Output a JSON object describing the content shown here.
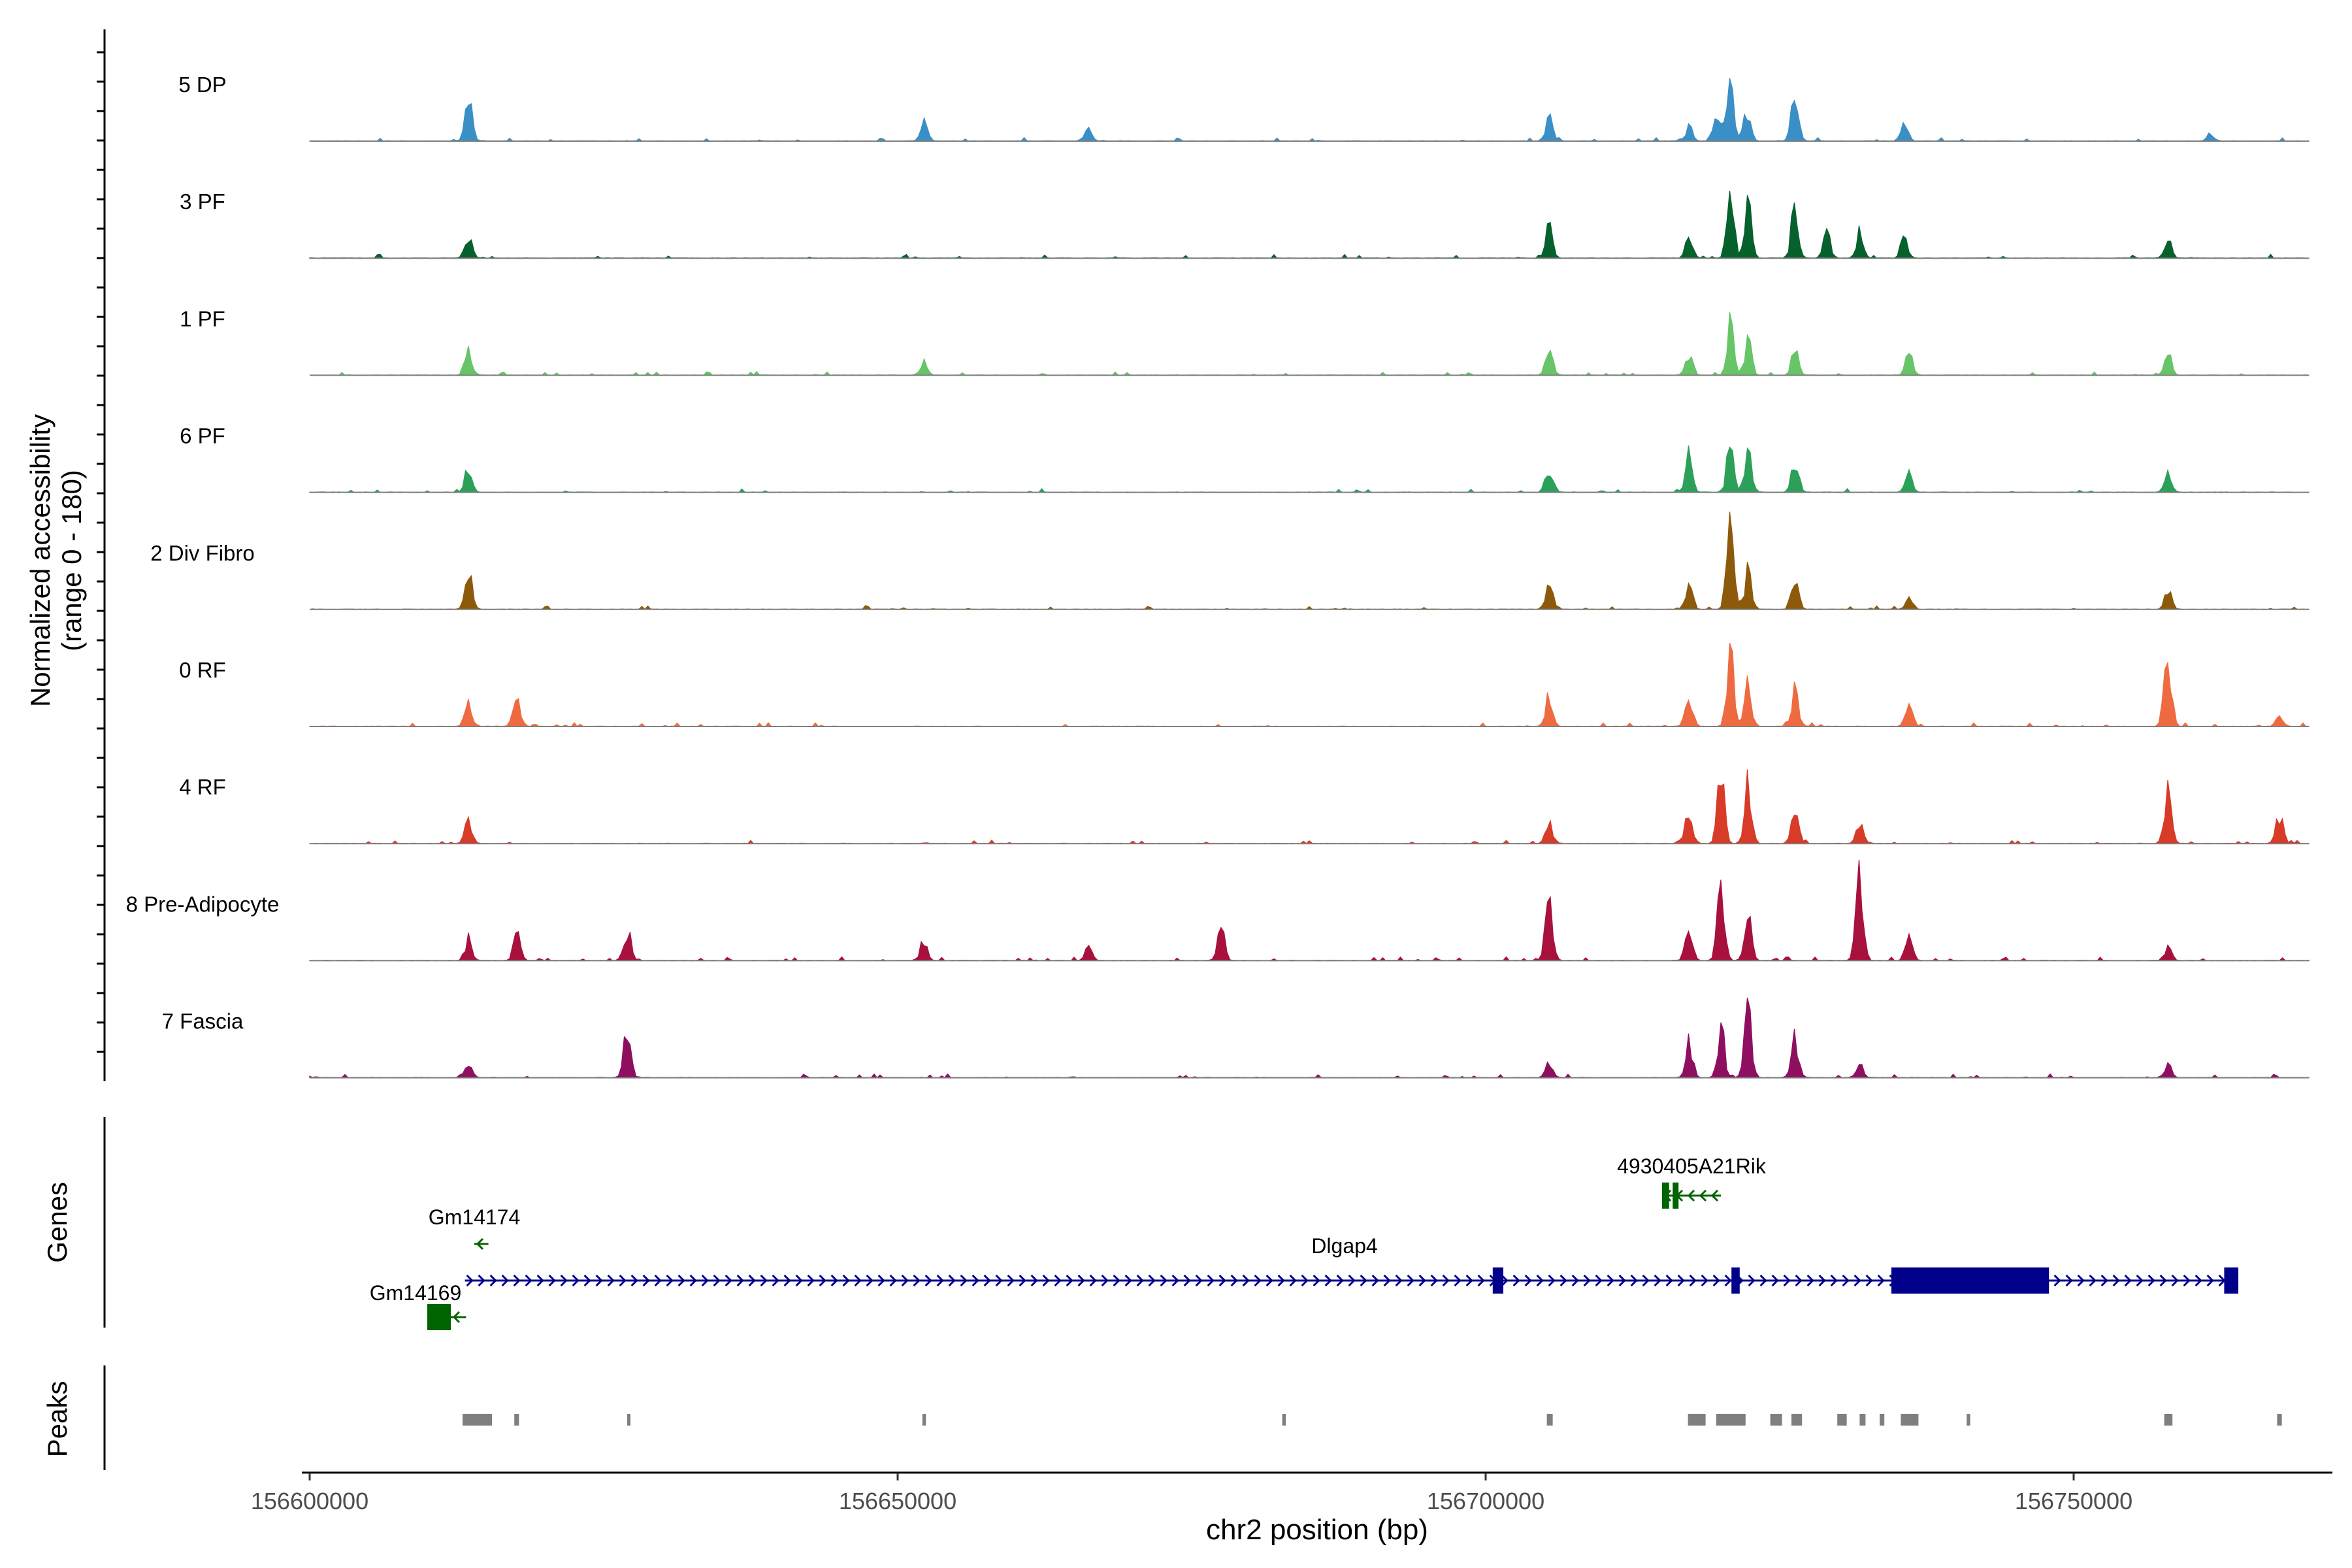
{
  "chart_data": {
    "type": "area",
    "title": "",
    "xlabel": "chr2 position (bp)",
    "xlim": [
      156600000,
      156780000
    ],
    "x_ticks": [
      156600000,
      156650000,
      156700000,
      156750000
    ],
    "x_tick_labels": [
      "156600000",
      "156650000",
      "156700000",
      "156750000"
    ],
    "coverage": {
      "ylabel_line1": "Normalized accessibility",
      "ylabel_line2": "(range 0 - 180)",
      "ylim": [
        0,
        180
      ],
      "range_bp": [
        156600000,
        156770000
      ],
      "tracks": [
        {
          "name": "5 DP",
          "color": "#3A8FC7",
          "peaks": [
            [
              156613500,
              0.55
            ],
            [
              156652200,
              0.28
            ],
            [
              156666200,
              0.22
            ],
            [
              156705400,
              0.33
            ],
            [
              156717300,
              0.22
            ],
            [
              156719600,
              0.45
            ],
            [
              156720800,
              1.0
            ],
            [
              156722200,
              0.4
            ],
            [
              156726300,
              0.88
            ],
            [
              156735600,
              0.22
            ],
            [
              156761600,
              0.1
            ]
          ]
        },
        {
          "name": "3 PF",
          "color": "#07612C",
          "peaks": [
            [
              156613500,
              0.35
            ],
            [
              156705400,
              0.5
            ],
            [
              156717300,
              0.3
            ],
            [
              156720800,
              0.95
            ],
            [
              156722300,
              0.7
            ],
            [
              156726300,
              0.8
            ],
            [
              156729000,
              0.35
            ],
            [
              156731800,
              0.35
            ],
            [
              156735600,
              0.3
            ],
            [
              156758000,
              0.25
            ]
          ]
        },
        {
          "name": "1 PF",
          "color": "#67C467",
          "peaks": [
            [
              156613500,
              0.4
            ],
            [
              156652200,
              0.18
            ],
            [
              156705400,
              0.35
            ],
            [
              156717300,
              0.3
            ],
            [
              156720800,
              0.7
            ],
            [
              156722300,
              0.5
            ],
            [
              156726300,
              0.35
            ],
            [
              156736000,
              0.3
            ],
            [
              156758000,
              0.3
            ]
          ]
        },
        {
          "name": "6 PF",
          "color": "#2CA059",
          "peaks": [
            [
              156613500,
              0.35
            ],
            [
              156705400,
              0.35
            ],
            [
              156717300,
              0.55
            ],
            [
              156720800,
              0.72
            ],
            [
              156722300,
              0.6
            ],
            [
              156726300,
              0.45
            ],
            [
              156736000,
              0.3
            ],
            [
              156758000,
              0.35
            ]
          ]
        },
        {
          "name": "2 Div Fibro",
          "color": "#8C5A0A",
          "peaks": [
            [
              156613500,
              0.52
            ],
            [
              156705400,
              0.38
            ],
            [
              156717300,
              0.35
            ],
            [
              156720800,
              1.3
            ],
            [
              156722300,
              0.5
            ],
            [
              156726300,
              0.4
            ],
            [
              156736000,
              0.2
            ],
            [
              156758000,
              0.28
            ]
          ]
        },
        {
          "name": "0 RF",
          "color": "#EE6B41",
          "peaks": [
            [
              156613500,
              0.38
            ],
            [
              156617600,
              0.45
            ],
            [
              156705400,
              0.45
            ],
            [
              156717300,
              0.4
            ],
            [
              156720800,
              1.0
            ],
            [
              156722300,
              0.6
            ],
            [
              156726300,
              0.5
            ],
            [
              156736000,
              0.3
            ],
            [
              156758000,
              1.08
            ],
            [
              156767500,
              0.15
            ]
          ]
        },
        {
          "name": "4 RF",
          "color": "#D83B28",
          "peaks": [
            [
              156613500,
              0.3
            ],
            [
              156705400,
              0.28
            ],
            [
              156717300,
              0.45
            ],
            [
              156720000,
              0.9
            ],
            [
              156722300,
              0.8
            ],
            [
              156726300,
              0.6
            ],
            [
              156731800,
              0.25
            ],
            [
              156758000,
              0.75
            ],
            [
              156767500,
              0.4
            ]
          ]
        },
        {
          "name": "8 Pre-Adipocyte",
          "color": "#A8113E",
          "peaks": [
            [
              156613500,
              0.3
            ],
            [
              156617600,
              0.35
            ],
            [
              156627000,
              0.45
            ],
            [
              156652200,
              0.25
            ],
            [
              156666200,
              0.2
            ],
            [
              156677500,
              0.45
            ],
            [
              156705400,
              0.95
            ],
            [
              156717300,
              0.45
            ],
            [
              156720000,
              1.1
            ],
            [
              156722300,
              0.6
            ],
            [
              156731800,
              1.3
            ],
            [
              156736000,
              0.35
            ],
            [
              156758000,
              0.2
            ]
          ]
        },
        {
          "name": "7 Fascia",
          "color": "#8E0F60",
          "peaks": [
            [
              156613500,
              0.25
            ],
            [
              156627000,
              0.65
            ],
            [
              156705400,
              0.25
            ],
            [
              156717300,
              0.5
            ],
            [
              156720000,
              0.7
            ],
            [
              156722300,
              0.9
            ],
            [
              156726300,
              0.6
            ],
            [
              156731800,
              0.2
            ],
            [
              156758000,
              0.2
            ]
          ]
        }
      ]
    },
    "genes_track": {
      "label": "Genes",
      "genes": [
        {
          "name": "Gm14174",
          "color": "#006400",
          "start": 156614000,
          "end": 156615200,
          "strand": "-",
          "row": 1,
          "exons": []
        },
        {
          "name": "4930405A21Rik",
          "color": "#006400",
          "start": 156715000,
          "end": 156720000,
          "strand": "-",
          "row": 0,
          "exons": [
            [
              156715000,
              156715600
            ],
            [
              156715900,
              156716400
            ]
          ]
        },
        {
          "name": "Dlgap4",
          "color": "#00008B",
          "start": 156613200,
          "end": 156764000,
          "strand": "+",
          "row": 2,
          "exons": [
            [
              156700600,
              156701500
            ],
            [
              156734500,
              156747900
            ],
            [
              156762800,
              156764000
            ],
            [
              156720900,
              156721600
            ]
          ]
        },
        {
          "name": "Gm14169",
          "color": "#006400",
          "start": 156610000,
          "end": 156613300,
          "strand": "-",
          "row": 3,
          "exons": [
            [
              156610000,
              156612000
            ]
          ]
        }
      ]
    },
    "peaks_track": {
      "label": "Peaks",
      "regions": [
        [
          156613000,
          156615500
        ],
        [
          156617400,
          156617800
        ],
        [
          156627000,
          156627200
        ],
        [
          156652100,
          156652400
        ],
        [
          156682700,
          156683000
        ],
        [
          156705200,
          156705700
        ],
        [
          156717200,
          156718700
        ],
        [
          156719600,
          156722100
        ],
        [
          156724200,
          156725200
        ],
        [
          156726000,
          156726900
        ],
        [
          156729900,
          156730700
        ],
        [
          156731800,
          156732300
        ],
        [
          156733500,
          156733900
        ],
        [
          156735300,
          156736800
        ],
        [
          156740900,
          156741200
        ],
        [
          156757700,
          156758400
        ],
        [
          156767300,
          156767700
        ]
      ]
    }
  }
}
